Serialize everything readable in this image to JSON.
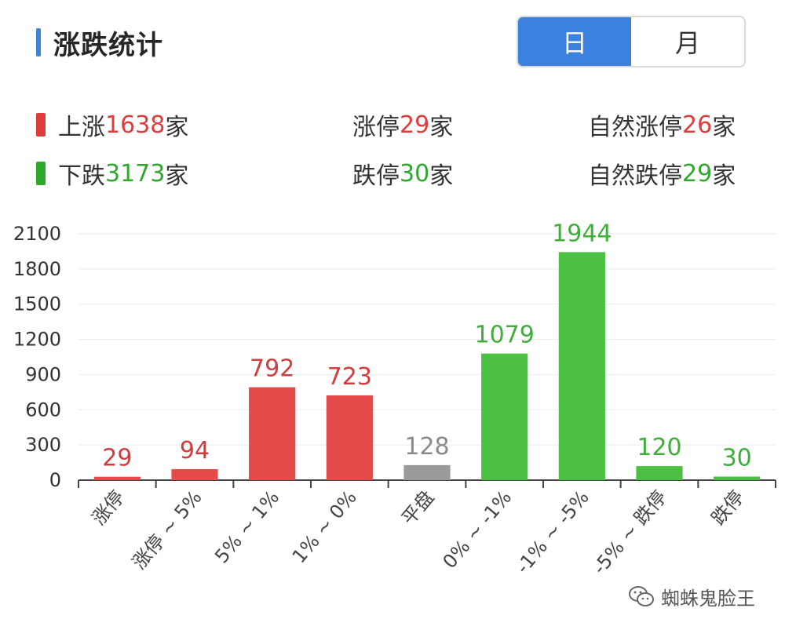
{
  "header": {
    "title": "涨跌统计",
    "toggle": [
      {
        "label": "日",
        "active": true
      },
      {
        "label": "月",
        "active": false
      }
    ]
  },
  "summary": {
    "up": {
      "prefix": "上涨",
      "value": "1638",
      "suffix": "家",
      "color": "#e03c3c"
    },
    "limit_up": {
      "prefix": "涨停",
      "value": "29",
      "suffix": "家"
    },
    "natural_limit_up": {
      "prefix": "自然涨停",
      "value": "26",
      "suffix": "家"
    },
    "down": {
      "prefix": "下跌",
      "value": "3173",
      "suffix": "家",
      "color": "#2ea82e"
    },
    "limit_down": {
      "prefix": "跌停",
      "value": "30",
      "suffix": "家"
    },
    "natural_limit_down": {
      "prefix": "自然跌停",
      "value": "29",
      "suffix": "家"
    }
  },
  "colors": {
    "up": "#e34a4a",
    "flat": "#9a9a9a",
    "down": "#4cc043",
    "accent": "#3b82e0"
  },
  "chart_data": {
    "type": "bar",
    "categories": [
      "涨停",
      "涨停 ~ 5%",
      "5% ~ 1%",
      "1% ~ 0%",
      "平盘",
      "0% ~ -1%",
      "-1% ~ -5%",
      "-5% ~ 跌停",
      "跌停"
    ],
    "values": [
      29,
      94,
      792,
      723,
      128,
      1079,
      1944,
      120,
      30
    ],
    "groups": [
      "up",
      "up",
      "up",
      "up",
      "flat",
      "down",
      "down",
      "down",
      "down"
    ],
    "yticks": [
      0,
      300,
      600,
      900,
      1200,
      1500,
      1800,
      2100
    ],
    "ylim": [
      0,
      2100
    ],
    "grid": true
  },
  "watermark": {
    "text": "蜘蛛鬼脸王"
  }
}
